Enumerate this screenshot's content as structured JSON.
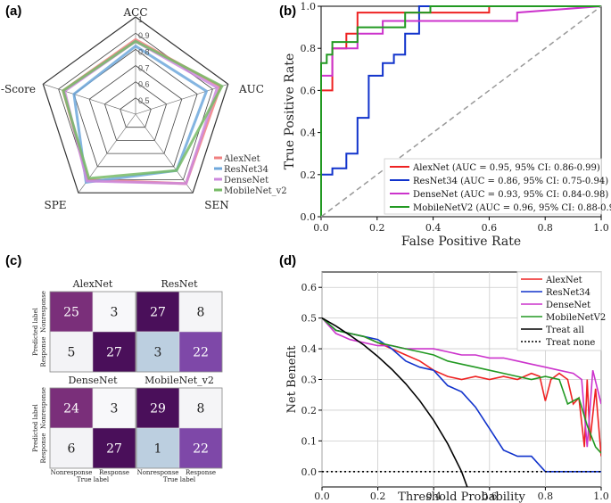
{
  "panels": {
    "a": "(a)",
    "b": "(b)",
    "c": "(c)",
    "d": "(d)"
  },
  "chart_data": [
    {
      "type": "radar",
      "id": "a",
      "axes": [
        "ACC",
        "AUC",
        "SEN",
        "SPE",
        "F1-Score"
      ],
      "radial_ticks": [
        "1",
        "0.9",
        "0.8",
        "0.7",
        "0.6",
        "0.5"
      ],
      "range": [
        0.4,
        1.0
      ],
      "series": [
        {
          "name": "AlexNet",
          "color": "#f08080",
          "values": [
            0.86,
            0.95,
            0.93,
            0.9,
            0.87
          ]
        },
        {
          "name": "ResNet34",
          "color": "#6fa8dc",
          "values": [
            0.82,
            0.86,
            0.83,
            0.92,
            0.8
          ]
        },
        {
          "name": "DenseNet",
          "color": "#cc88dd",
          "values": [
            0.85,
            0.93,
            0.93,
            0.91,
            0.86
          ]
        },
        {
          "name": "MobileNet_v2",
          "color": "#77bb66",
          "values": [
            0.85,
            0.96,
            0.83,
            0.89,
            0.87
          ]
        }
      ]
    },
    {
      "type": "line",
      "id": "b",
      "xlabel": "False Positive Rate",
      "ylabel": "True Positive Rate",
      "xlim": [
        0,
        1
      ],
      "ylim": [
        0,
        1
      ],
      "ticks": [
        "0.0",
        "0.2",
        "0.4",
        "0.6",
        "0.8",
        "1.0"
      ],
      "series": [
        {
          "name": "AlexNet",
          "label": "AlexNet (AUC = 0.95, 95% CI: 0.86-0.99)",
          "color": "#ee2222",
          "x": [
            0,
            0,
            0.04,
            0.04,
            0.09,
            0.09,
            0.13,
            0.13,
            0.6,
            0.6,
            1.0
          ],
          "y": [
            0,
            0.6,
            0.6,
            0.8,
            0.8,
            0.87,
            0.87,
            0.97,
            0.97,
            1.0,
            1.0
          ]
        },
        {
          "name": "ResNet34",
          "label": "ResNet34 (AUC = 0.86, 95% CI: 0.75-0.94)",
          "color": "#1133cc",
          "x": [
            0,
            0,
            0.04,
            0.04,
            0.09,
            0.09,
            0.13,
            0.13,
            0.17,
            0.17,
            0.22,
            0.22,
            0.26,
            0.26,
            0.3,
            0.3,
            0.35,
            0.35,
            1.0
          ],
          "y": [
            0,
            0.2,
            0.2,
            0.23,
            0.23,
            0.3,
            0.3,
            0.47,
            0.47,
            0.67,
            0.67,
            0.73,
            0.73,
            0.77,
            0.77,
            0.87,
            0.87,
            1.0,
            1.0
          ]
        },
        {
          "name": "DenseNet",
          "label": "DenseNet (AUC = 0.93, 95% CI: 0.84-0.98)",
          "color": "#cc33cc",
          "x": [
            0,
            0,
            0.04,
            0.04,
            0.13,
            0.13,
            0.22,
            0.22,
            0.7,
            0.7,
            1.0
          ],
          "y": [
            0,
            0.67,
            0.67,
            0.8,
            0.8,
            0.87,
            0.87,
            0.93,
            0.93,
            0.97,
            1.0
          ]
        },
        {
          "name": "MobileNetV2",
          "label": "MobileNetV2   (AUC = 0.96, 95% CI: 0.88-0.99)",
          "color": "#229922",
          "x": [
            0,
            0,
            0.02,
            0.02,
            0.04,
            0.04,
            0.13,
            0.13,
            0.3,
            0.3,
            0.39,
            0.39,
            1.0
          ],
          "y": [
            0,
            0.73,
            0.73,
            0.77,
            0.77,
            0.83,
            0.83,
            0.9,
            0.9,
            0.97,
            0.97,
            1.0,
            1.0
          ]
        },
        {
          "name": "Chance",
          "label": "",
          "color": "#999999",
          "x": [
            0,
            1
          ],
          "y": [
            0,
            1
          ]
        }
      ]
    },
    {
      "type": "heatmap",
      "id": "c",
      "xlabel": "True label",
      "ylabel": "Predicted label",
      "x_ticks": [
        "Nonresponse",
        "Response"
      ],
      "y_ticks": [
        "Nonresponse",
        "Response"
      ],
      "matrices": [
        {
          "title": "AlexNet",
          "values": [
            [
              25,
              3
            ],
            [
              5,
              27
            ]
          ]
        },
        {
          "title": "ResNet",
          "values": [
            [
              27,
              8
            ],
            [
              3,
              22
            ]
          ]
        },
        {
          "title": "DenseNet",
          "values": [
            [
              24,
              3
            ],
            [
              6,
              27
            ]
          ]
        },
        {
          "title": "MobileNet_v2",
          "values": [
            [
              29,
              8
            ],
            [
              1,
              22
            ]
          ]
        }
      ]
    },
    {
      "type": "line",
      "id": "d",
      "xlabel": "Threshold Probability",
      "ylabel": "Net Benefit",
      "xlim": [
        0,
        1
      ],
      "ylim": [
        -0.05,
        0.65
      ],
      "x_ticks": [
        "0.0",
        "0.2",
        "0.4",
        "0.6",
        "0.8",
        "1.0"
      ],
      "y_ticks": [
        "0.0",
        "0.1",
        "0.2",
        "0.3",
        "0.4",
        "0.5",
        "0.6"
      ],
      "series": [
        {
          "name": "AlexNet",
          "color": "#ee2222",
          "style": "solid",
          "x": [
            0,
            0.05,
            0.1,
            0.15,
            0.2,
            0.25,
            0.3,
            0.35,
            0.4,
            0.45,
            0.5,
            0.55,
            0.6,
            0.65,
            0.7,
            0.75,
            0.78,
            0.8,
            0.82,
            0.85,
            0.88,
            0.9,
            0.92,
            0.94,
            0.95,
            0.96,
            0.98,
            1.0
          ],
          "y": [
            0.5,
            0.46,
            0.45,
            0.44,
            0.42,
            0.4,
            0.38,
            0.36,
            0.33,
            0.31,
            0.3,
            0.31,
            0.3,
            0.31,
            0.3,
            0.32,
            0.31,
            0.23,
            0.3,
            0.32,
            0.3,
            0.22,
            0.24,
            0.08,
            0.3,
            0.1,
            0.27,
            0.05
          ]
        },
        {
          "name": "ResNet34",
          "color": "#1133cc",
          "style": "solid",
          "x": [
            0,
            0.05,
            0.1,
            0.15,
            0.2,
            0.25,
            0.3,
            0.35,
            0.4,
            0.45,
            0.5,
            0.55,
            0.6,
            0.65,
            0.7,
            0.75,
            0.8,
            0.85,
            0.9,
            0.95,
            1.0
          ],
          "y": [
            0.5,
            0.46,
            0.45,
            0.44,
            0.43,
            0.4,
            0.36,
            0.34,
            0.33,
            0.28,
            0.26,
            0.21,
            0.14,
            0.07,
            0.05,
            0.05,
            0.0,
            0.0,
            0.0,
            0.0,
            0.0
          ]
        },
        {
          "name": "DenseNet",
          "color": "#cc33cc",
          "style": "solid",
          "x": [
            0,
            0.05,
            0.1,
            0.15,
            0.2,
            0.25,
            0.3,
            0.35,
            0.4,
            0.45,
            0.5,
            0.55,
            0.6,
            0.65,
            0.7,
            0.75,
            0.8,
            0.85,
            0.9,
            0.93,
            0.95,
            0.97,
            1.0
          ],
          "y": [
            0.5,
            0.45,
            0.43,
            0.42,
            0.41,
            0.41,
            0.4,
            0.4,
            0.4,
            0.39,
            0.38,
            0.38,
            0.37,
            0.37,
            0.36,
            0.35,
            0.34,
            0.33,
            0.32,
            0.3,
            0.08,
            0.33,
            0.22
          ]
        },
        {
          "name": "MobileNetV2",
          "color": "#229922",
          "style": "solid",
          "x": [
            0,
            0.05,
            0.1,
            0.15,
            0.2,
            0.25,
            0.3,
            0.35,
            0.4,
            0.45,
            0.5,
            0.55,
            0.6,
            0.65,
            0.7,
            0.75,
            0.8,
            0.85,
            0.88,
            0.92,
            0.95,
            0.98,
            1.0
          ],
          "y": [
            0.5,
            0.46,
            0.45,
            0.44,
            0.42,
            0.41,
            0.4,
            0.39,
            0.38,
            0.36,
            0.35,
            0.34,
            0.33,
            0.32,
            0.31,
            0.3,
            0.31,
            0.3,
            0.22,
            0.24,
            0.15,
            0.08,
            0.06
          ]
        },
        {
          "name": "Treat all",
          "color": "#000000",
          "style": "solid",
          "x": [
            0,
            0.05,
            0.1,
            0.15,
            0.2,
            0.25,
            0.3,
            0.35,
            0.4,
            0.45,
            0.5,
            0.52
          ],
          "y": [
            0.5,
            0.474,
            0.444,
            0.412,
            0.375,
            0.333,
            0.286,
            0.231,
            0.167,
            0.091,
            0.0,
            -0.05
          ]
        },
        {
          "name": "Treat none",
          "color": "#000000",
          "style": "dotted",
          "x": [
            0,
            1.0
          ],
          "y": [
            0,
            0
          ]
        }
      ]
    }
  ]
}
